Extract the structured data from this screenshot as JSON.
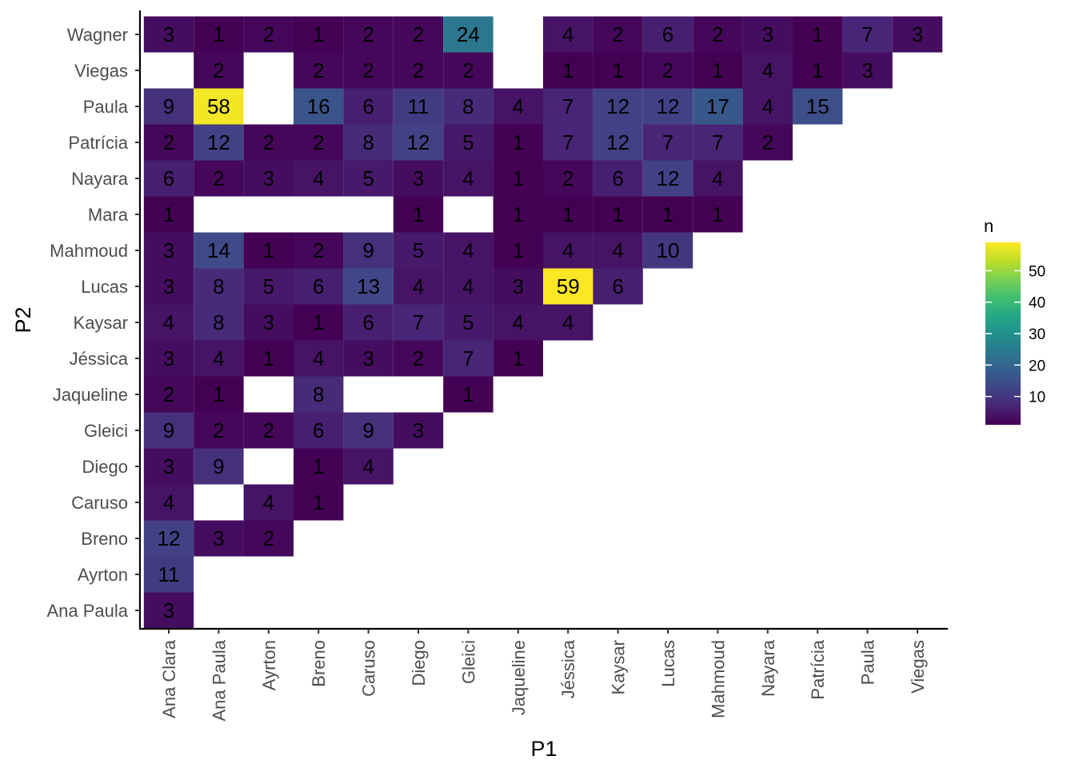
{
  "chart_data": {
    "type": "heatmap",
    "title": "",
    "xlabel": "P1",
    "ylabel": "P2",
    "x_categories": [
      "Ana Clara",
      "Ana Paula",
      "Ayrton",
      "Breno",
      "Caruso",
      "Diego",
      "Gleici",
      "Jaqueline",
      "Jéssica",
      "Kaysar",
      "Lucas",
      "Mahmoud",
      "Nayara",
      "Patrícia",
      "Paula",
      "Viegas"
    ],
    "y_categories": [
      "Ana Paula",
      "Ayrton",
      "Breno",
      "Caruso",
      "Diego",
      "Gleici",
      "Jaqueline",
      "Jéssica",
      "Kaysar",
      "Lucas",
      "Mahmoud",
      "Mara",
      "Nayara",
      "Patrícia",
      "Paula",
      "Viegas",
      "Wagner"
    ],
    "legend": {
      "title": "n",
      "min": 1,
      "max": 59,
      "ticks": [
        10,
        20,
        30,
        40,
        50
      ],
      "colormap": "viridis",
      "position": "right"
    },
    "cells": [
      {
        "x": "Ana Clara",
        "y": "Wagner",
        "value": 3
      },
      {
        "x": "Ana Paula",
        "y": "Wagner",
        "value": 1
      },
      {
        "x": "Ayrton",
        "y": "Wagner",
        "value": 2
      },
      {
        "x": "Breno",
        "y": "Wagner",
        "value": 1
      },
      {
        "x": "Caruso",
        "y": "Wagner",
        "value": 2
      },
      {
        "x": "Diego",
        "y": "Wagner",
        "value": 2
      },
      {
        "x": "Gleici",
        "y": "Wagner",
        "value": 24
      },
      {
        "x": "Jéssica",
        "y": "Wagner",
        "value": 4
      },
      {
        "x": "Kaysar",
        "y": "Wagner",
        "value": 2
      },
      {
        "x": "Lucas",
        "y": "Wagner",
        "value": 6
      },
      {
        "x": "Mahmoud",
        "y": "Wagner",
        "value": 2
      },
      {
        "x": "Nayara",
        "y": "Wagner",
        "value": 3
      },
      {
        "x": "Patrícia",
        "y": "Wagner",
        "value": 1
      },
      {
        "x": "Paula",
        "y": "Wagner",
        "value": 7
      },
      {
        "x": "Viegas",
        "y": "Wagner",
        "value": 3
      },
      {
        "x": "Ana Paula",
        "y": "Viegas",
        "value": 2
      },
      {
        "x": "Breno",
        "y": "Viegas",
        "value": 2
      },
      {
        "x": "Caruso",
        "y": "Viegas",
        "value": 2
      },
      {
        "x": "Diego",
        "y": "Viegas",
        "value": 2
      },
      {
        "x": "Gleici",
        "y": "Viegas",
        "value": 2
      },
      {
        "x": "Jéssica",
        "y": "Viegas",
        "value": 1
      },
      {
        "x": "Kaysar",
        "y": "Viegas",
        "value": 1
      },
      {
        "x": "Lucas",
        "y": "Viegas",
        "value": 2
      },
      {
        "x": "Mahmoud",
        "y": "Viegas",
        "value": 1
      },
      {
        "x": "Nayara",
        "y": "Viegas",
        "value": 4
      },
      {
        "x": "Patrícia",
        "y": "Viegas",
        "value": 1
      },
      {
        "x": "Paula",
        "y": "Viegas",
        "value": 3
      },
      {
        "x": "Ana Clara",
        "y": "Paula",
        "value": 9
      },
      {
        "x": "Ana Paula",
        "y": "Paula",
        "value": 58
      },
      {
        "x": "Breno",
        "y": "Paula",
        "value": 16
      },
      {
        "x": "Caruso",
        "y": "Paula",
        "value": 6
      },
      {
        "x": "Diego",
        "y": "Paula",
        "value": 11
      },
      {
        "x": "Gleici",
        "y": "Paula",
        "value": 8
      },
      {
        "x": "Jaqueline",
        "y": "Paula",
        "value": 4
      },
      {
        "x": "Jéssica",
        "y": "Paula",
        "value": 7
      },
      {
        "x": "Kaysar",
        "y": "Paula",
        "value": 12
      },
      {
        "x": "Lucas",
        "y": "Paula",
        "value": 12
      },
      {
        "x": "Mahmoud",
        "y": "Paula",
        "value": 17
      },
      {
        "x": "Nayara",
        "y": "Paula",
        "value": 4
      },
      {
        "x": "Patrícia",
        "y": "Paula",
        "value": 15
      },
      {
        "x": "Ana Clara",
        "y": "Patrícia",
        "value": 2
      },
      {
        "x": "Ana Paula",
        "y": "Patrícia",
        "value": 12
      },
      {
        "x": "Ayrton",
        "y": "Patrícia",
        "value": 2
      },
      {
        "x": "Breno",
        "y": "Patrícia",
        "value": 2
      },
      {
        "x": "Caruso",
        "y": "Patrícia",
        "value": 8
      },
      {
        "x": "Diego",
        "y": "Patrícia",
        "value": 12
      },
      {
        "x": "Gleici",
        "y": "Patrícia",
        "value": 5
      },
      {
        "x": "Jaqueline",
        "y": "Patrícia",
        "value": 1
      },
      {
        "x": "Jéssica",
        "y": "Patrícia",
        "value": 7
      },
      {
        "x": "Kaysar",
        "y": "Patrícia",
        "value": 12
      },
      {
        "x": "Lucas",
        "y": "Patrícia",
        "value": 7
      },
      {
        "x": "Mahmoud",
        "y": "Patrícia",
        "value": 7
      },
      {
        "x": "Nayara",
        "y": "Patrícia",
        "value": 2
      },
      {
        "x": "Ana Clara",
        "y": "Nayara",
        "value": 6
      },
      {
        "x": "Ana Paula",
        "y": "Nayara",
        "value": 2
      },
      {
        "x": "Ayrton",
        "y": "Nayara",
        "value": 3
      },
      {
        "x": "Breno",
        "y": "Nayara",
        "value": 4
      },
      {
        "x": "Caruso",
        "y": "Nayara",
        "value": 5
      },
      {
        "x": "Diego",
        "y": "Nayara",
        "value": 3
      },
      {
        "x": "Gleici",
        "y": "Nayara",
        "value": 4
      },
      {
        "x": "Jaqueline",
        "y": "Nayara",
        "value": 1
      },
      {
        "x": "Jéssica",
        "y": "Nayara",
        "value": 2
      },
      {
        "x": "Kaysar",
        "y": "Nayara",
        "value": 6
      },
      {
        "x": "Lucas",
        "y": "Nayara",
        "value": 12
      },
      {
        "x": "Mahmoud",
        "y": "Nayara",
        "value": 4
      },
      {
        "x": "Ana Clara",
        "y": "Mara",
        "value": 1
      },
      {
        "x": "Diego",
        "y": "Mara",
        "value": 1
      },
      {
        "x": "Jaqueline",
        "y": "Mara",
        "value": 1
      },
      {
        "x": "Jéssica",
        "y": "Mara",
        "value": 1
      },
      {
        "x": "Kaysar",
        "y": "Mara",
        "value": 1
      },
      {
        "x": "Lucas",
        "y": "Mara",
        "value": 1
      },
      {
        "x": "Mahmoud",
        "y": "Mara",
        "value": 1
      },
      {
        "x": "Ana Clara",
        "y": "Mahmoud",
        "value": 3
      },
      {
        "x": "Ana Paula",
        "y": "Mahmoud",
        "value": 14
      },
      {
        "x": "Ayrton",
        "y": "Mahmoud",
        "value": 1
      },
      {
        "x": "Breno",
        "y": "Mahmoud",
        "value": 2
      },
      {
        "x": "Caruso",
        "y": "Mahmoud",
        "value": 9
      },
      {
        "x": "Diego",
        "y": "Mahmoud",
        "value": 5
      },
      {
        "x": "Gleici",
        "y": "Mahmoud",
        "value": 4
      },
      {
        "x": "Jaqueline",
        "y": "Mahmoud",
        "value": 1
      },
      {
        "x": "Jéssica",
        "y": "Mahmoud",
        "value": 4
      },
      {
        "x": "Kaysar",
        "y": "Mahmoud",
        "value": 4
      },
      {
        "x": "Lucas",
        "y": "Mahmoud",
        "value": 10
      },
      {
        "x": "Ana Clara",
        "y": "Lucas",
        "value": 3
      },
      {
        "x": "Ana Paula",
        "y": "Lucas",
        "value": 8
      },
      {
        "x": "Ayrton",
        "y": "Lucas",
        "value": 5
      },
      {
        "x": "Breno",
        "y": "Lucas",
        "value": 6
      },
      {
        "x": "Caruso",
        "y": "Lucas",
        "value": 13
      },
      {
        "x": "Diego",
        "y": "Lucas",
        "value": 4
      },
      {
        "x": "Gleici",
        "y": "Lucas",
        "value": 4
      },
      {
        "x": "Jaqueline",
        "y": "Lucas",
        "value": 3
      },
      {
        "x": "Jéssica",
        "y": "Lucas",
        "value": 59
      },
      {
        "x": "Kaysar",
        "y": "Lucas",
        "value": 6
      },
      {
        "x": "Ana Clara",
        "y": "Kaysar",
        "value": 4
      },
      {
        "x": "Ana Paula",
        "y": "Kaysar",
        "value": 8
      },
      {
        "x": "Ayrton",
        "y": "Kaysar",
        "value": 3
      },
      {
        "x": "Breno",
        "y": "Kaysar",
        "value": 1
      },
      {
        "x": "Caruso",
        "y": "Kaysar",
        "value": 6
      },
      {
        "x": "Diego",
        "y": "Kaysar",
        "value": 7
      },
      {
        "x": "Gleici",
        "y": "Kaysar",
        "value": 5
      },
      {
        "x": "Jaqueline",
        "y": "Kaysar",
        "value": 4
      },
      {
        "x": "Jéssica",
        "y": "Kaysar",
        "value": 4
      },
      {
        "x": "Ana Clara",
        "y": "Jéssica",
        "value": 3
      },
      {
        "x": "Ana Paula",
        "y": "Jéssica",
        "value": 4
      },
      {
        "x": "Ayrton",
        "y": "Jéssica",
        "value": 1
      },
      {
        "x": "Breno",
        "y": "Jéssica",
        "value": 4
      },
      {
        "x": "Caruso",
        "y": "Jéssica",
        "value": 3
      },
      {
        "x": "Diego",
        "y": "Jéssica",
        "value": 2
      },
      {
        "x": "Gleici",
        "y": "Jéssica",
        "value": 7
      },
      {
        "x": "Jaqueline",
        "y": "Jéssica",
        "value": 1
      },
      {
        "x": "Ana Clara",
        "y": "Jaqueline",
        "value": 2
      },
      {
        "x": "Ana Paula",
        "y": "Jaqueline",
        "value": 1
      },
      {
        "x": "Breno",
        "y": "Jaqueline",
        "value": 8
      },
      {
        "x": "Gleici",
        "y": "Jaqueline",
        "value": 1
      },
      {
        "x": "Ana Clara",
        "y": "Gleici",
        "value": 9
      },
      {
        "x": "Ana Paula",
        "y": "Gleici",
        "value": 2
      },
      {
        "x": "Ayrton",
        "y": "Gleici",
        "value": 2
      },
      {
        "x": "Breno",
        "y": "Gleici",
        "value": 6
      },
      {
        "x": "Caruso",
        "y": "Gleici",
        "value": 9
      },
      {
        "x": "Diego",
        "y": "Gleici",
        "value": 3
      },
      {
        "x": "Ana Clara",
        "y": "Diego",
        "value": 3
      },
      {
        "x": "Ana Paula",
        "y": "Diego",
        "value": 9
      },
      {
        "x": "Breno",
        "y": "Diego",
        "value": 1
      },
      {
        "x": "Caruso",
        "y": "Diego",
        "value": 4
      },
      {
        "x": "Ana Clara",
        "y": "Caruso",
        "value": 4
      },
      {
        "x": "Ayrton",
        "y": "Caruso",
        "value": 4
      },
      {
        "x": "Breno",
        "y": "Caruso",
        "value": 1
      },
      {
        "x": "Ana Clara",
        "y": "Breno",
        "value": 12
      },
      {
        "x": "Ana Paula",
        "y": "Breno",
        "value": 3
      },
      {
        "x": "Ayrton",
        "y": "Breno",
        "value": 2
      },
      {
        "x": "Ana Clara",
        "y": "Ayrton",
        "value": 11
      },
      {
        "x": "Ana Clara",
        "y": "Ana Paula",
        "value": 3
      }
    ]
  }
}
